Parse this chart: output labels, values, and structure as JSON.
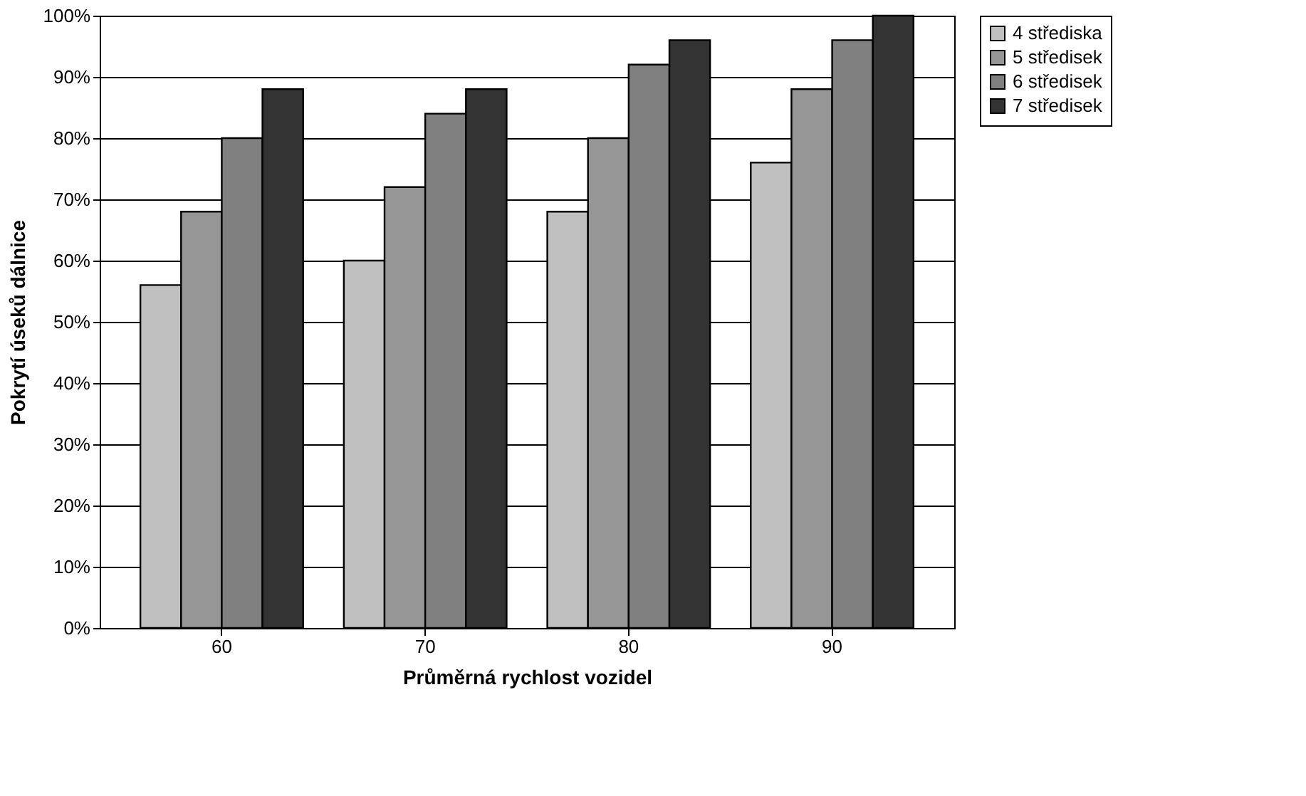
{
  "chart_data": {
    "type": "bar",
    "xlabel": "Průměrná rychlost vozidel",
    "ylabel": "Pokrytí úseků dálnice",
    "categories": [
      "60",
      "70",
      "80",
      "90"
    ],
    "series": [
      {
        "name": "4 střediska",
        "color": "#c0c0c0",
        "values": [
          56,
          60,
          68,
          76
        ]
      },
      {
        "name": "5 středisek",
        "color": "#969696",
        "values": [
          68,
          72,
          80,
          88
        ]
      },
      {
        "name": "6 středisek",
        "color": "#808080",
        "values": [
          80,
          84,
          92,
          96
        ]
      },
      {
        "name": "7 středisek",
        "color": "#333333",
        "values": [
          88,
          88,
          96,
          100
        ]
      }
    ],
    "ylim": [
      0,
      100
    ],
    "yticks": [
      {
        "value": 0,
        "label": "0%"
      },
      {
        "value": 10,
        "label": "10%"
      },
      {
        "value": 20,
        "label": "20%"
      },
      {
        "value": 30,
        "label": "30%"
      },
      {
        "value": 40,
        "label": "40%"
      },
      {
        "value": 50,
        "label": "50%"
      },
      {
        "value": 60,
        "label": "60%"
      },
      {
        "value": 70,
        "label": "70%"
      },
      {
        "value": 80,
        "label": "80%"
      },
      {
        "value": 90,
        "label": "90%"
      },
      {
        "value": 100,
        "label": "100%"
      }
    ],
    "grid": "y",
    "legend": "right"
  }
}
